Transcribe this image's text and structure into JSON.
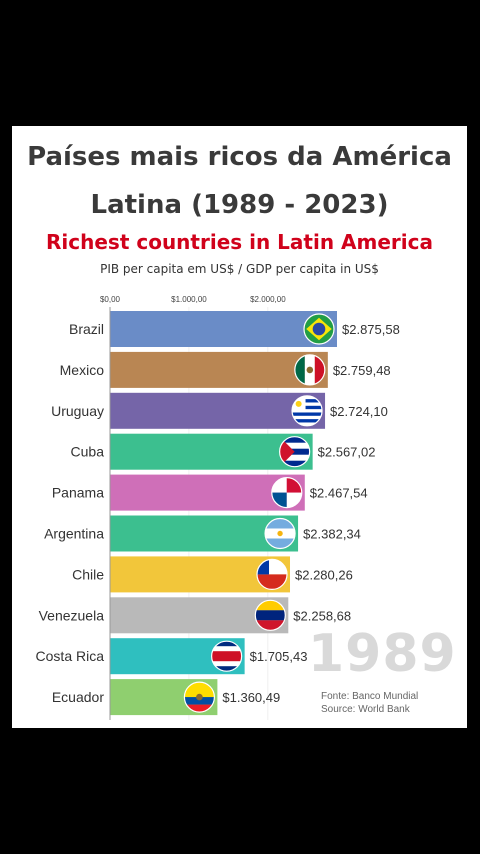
{
  "header": {
    "title_line1": "Países mais ricos da América",
    "title_line2": "Latina (1989 - 2023)",
    "subtitle": "Richest countries in Latin America",
    "caption": "PIB per capita em US$ / GDP per capita in US$"
  },
  "year_label": "1989",
  "source": {
    "line1": "Fonte: Banco Mundial",
    "line2": "Source: World Bank"
  },
  "colors": {
    "title": "#3a3a3a",
    "subtitle": "#d0021b",
    "year": "#d9d9d9"
  },
  "chart_data": {
    "type": "bar",
    "orientation": "horizontal",
    "xlim": [
      0,
      2875.58
    ],
    "ticks": [
      {
        "value": 0,
        "label": "$0,00"
      },
      {
        "value": 1000,
        "label": "$1.000,00"
      },
      {
        "value": 2000,
        "label": "$2.000,00"
      }
    ],
    "bars": [
      {
        "country": "Brazil",
        "value": 2875.58,
        "label": "$2.875,58",
        "color": "#6a8cc7",
        "flag": "brazil-flag"
      },
      {
        "country": "Mexico",
        "value": 2759.48,
        "label": "$2.759,48",
        "color": "#b98653",
        "flag": "mexico-flag"
      },
      {
        "country": "Uruguay",
        "value": 2724.1,
        "label": "$2.724,10",
        "color": "#7565a8",
        "flag": "uruguay-flag"
      },
      {
        "country": "Cuba",
        "value": 2567.02,
        "label": "$2.567,02",
        "color": "#3cbf8f",
        "flag": "cuba-flag"
      },
      {
        "country": "Panama",
        "value": 2467.54,
        "label": "$2.467,54",
        "color": "#cf6fb8",
        "flag": "panama-flag"
      },
      {
        "country": "Argentina",
        "value": 2382.34,
        "label": "$2.382,34",
        "color": "#3cbf8f",
        "flag": "argentina-flag"
      },
      {
        "country": "Chile",
        "value": 2280.26,
        "label": "$2.280,26",
        "color": "#f2c63a",
        "flag": "chile-flag"
      },
      {
        "country": "Venezuela",
        "value": 2258.68,
        "label": "$2.258,68",
        "color": "#b9b9b9",
        "flag": "venezuela-flag"
      },
      {
        "country": "Costa Rica",
        "value": 1705.43,
        "label": "$1.705,43",
        "color": "#2fbfbf",
        "flag": "costa-rica-flag"
      },
      {
        "country": "Ecuador",
        "value": 1360.49,
        "label": "$1.360,49",
        "color": "#8fcf6f",
        "flag": "ecuador-flag"
      }
    ]
  }
}
